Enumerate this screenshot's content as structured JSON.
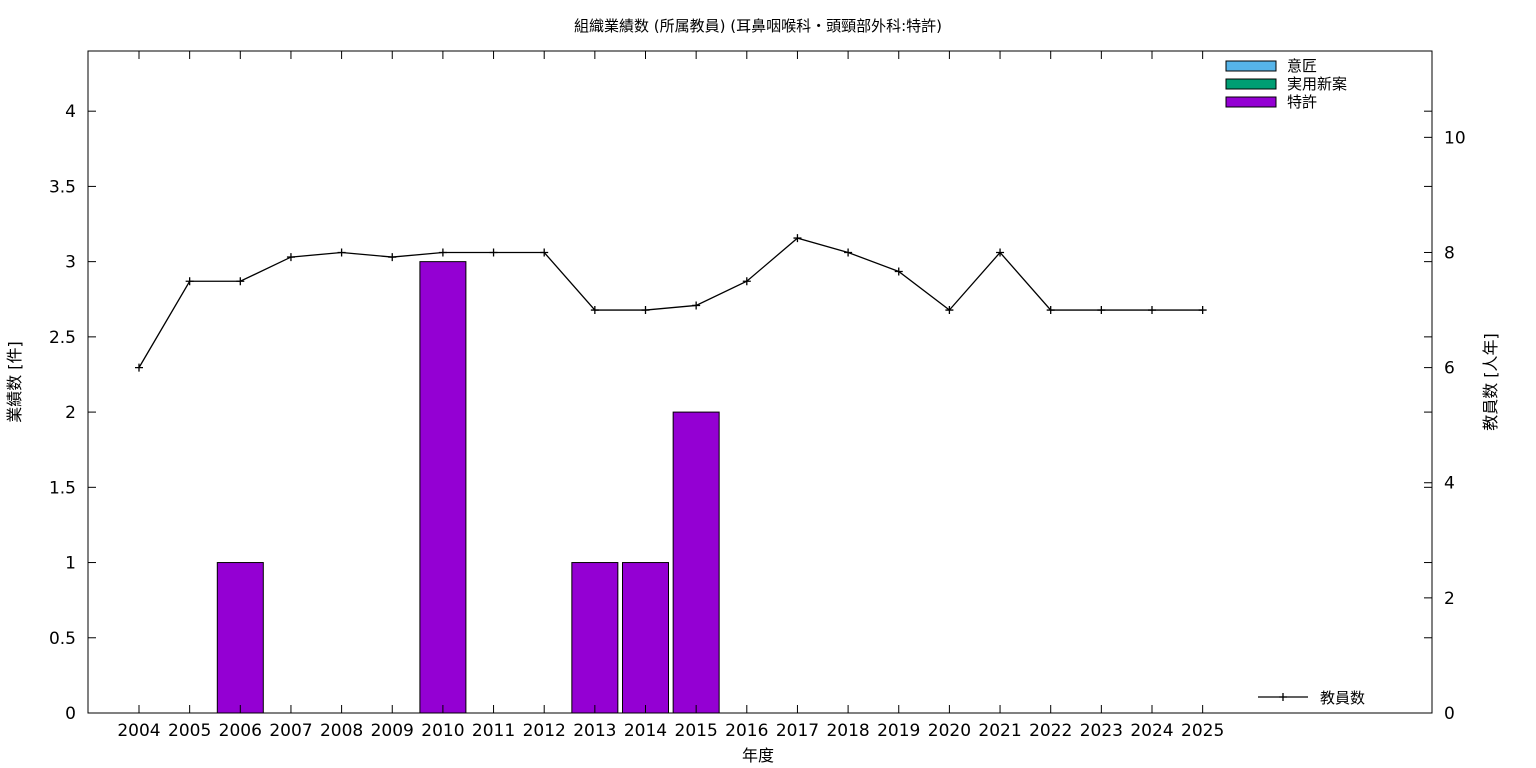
{
  "chart_data": {
    "type": "bar",
    "title": "組織業績数 (所属教員) (耳鼻咽喉科・頭頸部外科:特許)",
    "xlabel": "年度",
    "ylabel": "業績数 [件]",
    "y2label": "教員数 [人年]",
    "categories": [
      "2004",
      "2005",
      "2006",
      "2007",
      "2008",
      "2009",
      "2010",
      "2011",
      "2012",
      "2013",
      "2014",
      "2015",
      "2016",
      "2017",
      "2018",
      "2019",
      "2020",
      "2021",
      "2022",
      "2023",
      "2024",
      "2025"
    ],
    "ylim": [
      0,
      4.4
    ],
    "y2lim": [
      0,
      11.5
    ],
    "yticks": [
      "0",
      "0.5",
      "1",
      "1.5",
      "2",
      "2.5",
      "3",
      "3.5",
      "4"
    ],
    "y2ticks": [
      "0",
      "2",
      "4",
      "6",
      "8",
      "10"
    ],
    "series": [
      {
        "name": "意匠",
        "kind": "bar",
        "color": "#56b4e9",
        "values": [
          0,
          0,
          0,
          0,
          0,
          0,
          0,
          0,
          0,
          0,
          0,
          0,
          0,
          0,
          0,
          0,
          0,
          0,
          0,
          0,
          0,
          0
        ]
      },
      {
        "name": "実用新案",
        "kind": "bar",
        "color": "#009e73",
        "values": [
          0,
          0,
          0,
          0,
          0,
          0,
          0,
          0,
          0,
          0,
          0,
          0,
          0,
          0,
          0,
          0,
          0,
          0,
          0,
          0,
          0,
          0
        ]
      },
      {
        "name": "特許",
        "kind": "bar",
        "color": "#9400d3",
        "values": [
          0,
          0,
          1,
          0,
          0,
          0,
          3,
          0,
          0,
          1,
          1,
          2,
          0,
          0,
          0,
          0,
          0,
          0,
          0,
          0,
          0,
          0
        ]
      },
      {
        "name": "教員数",
        "kind": "line",
        "axis": "y2",
        "color": "#000000",
        "values": [
          6.0,
          7.5,
          7.5,
          7.92,
          8.0,
          7.92,
          8.0,
          8.0,
          8.0,
          7.0,
          7.0,
          7.08,
          7.5,
          8.25,
          8.0,
          7.67,
          7.0,
          8.0,
          7.0,
          7.0,
          7.0,
          7.0
        ]
      }
    ],
    "legend": [
      "意匠",
      "実用新案",
      "特許"
    ],
    "line_legend": "教員数",
    "legend_position": "top-right",
    "grid": false
  }
}
